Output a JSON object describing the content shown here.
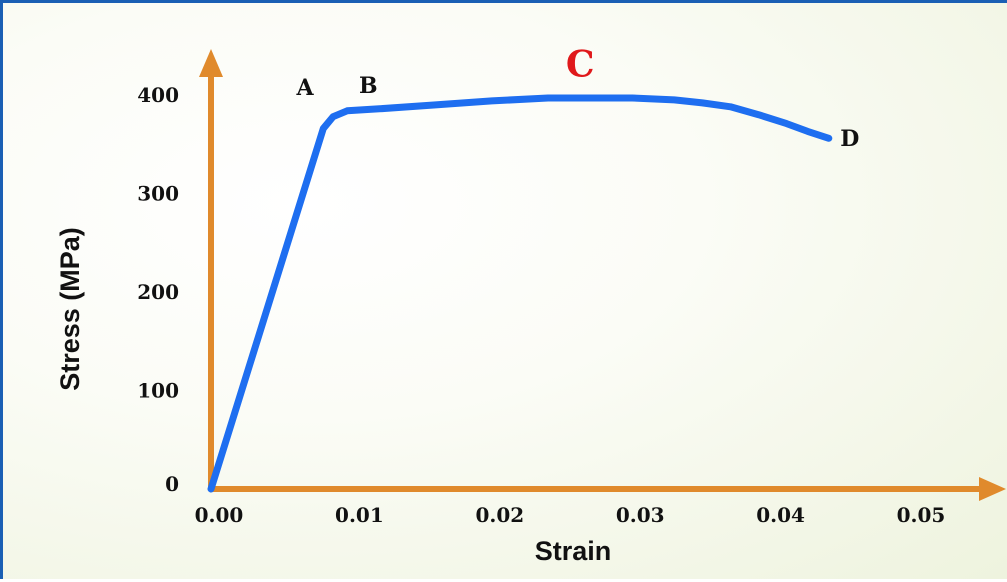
{
  "chart_data": {
    "type": "line",
    "xlabel": "Strain",
    "ylabel": "Stress (MPa)",
    "xlim": [
      0,
      0.053
    ],
    "ylim": [
      0,
      430
    ],
    "x_ticks": [
      "0.00",
      "0.01",
      "0.02",
      "0.03",
      "0.04",
      "0.05"
    ],
    "x_tick_values": [
      0,
      0.01,
      0.02,
      0.03,
      0.04,
      0.05
    ],
    "y_ticks": [
      "0",
      "100",
      "200",
      "300",
      "400"
    ],
    "y_tick_values": [
      0,
      100,
      200,
      300,
      400
    ],
    "series": [
      {
        "color": "#1e6ef0",
        "x": [
          0,
          0.008,
          0.0087,
          0.0097,
          0.012,
          0.016,
          0.02,
          0.024,
          0.026,
          0.03,
          0.033,
          0.035,
          0.037,
          0.039,
          0.041,
          0.0425,
          0.044
        ],
        "y": [
          0,
          366,
          378,
          384,
          386,
          390,
          394,
          397,
          397,
          397,
          395,
          392,
          388,
          380,
          371,
          363,
          356
        ]
      }
    ],
    "annotations": [
      {
        "text": "A",
        "x": 0.0067,
        "y": 400,
        "color": "#111111"
      },
      {
        "text": "B",
        "x": 0.0112,
        "y": 402,
        "color": "#111111"
      },
      {
        "text": "C",
        "x": 0.0263,
        "y": 419,
        "color": "#e0191b"
      },
      {
        "text": "D",
        "x": 0.0455,
        "y": 348,
        "color": "#111111"
      }
    ],
    "axis_color": "#e08a2c",
    "grid": false,
    "legend": "none"
  }
}
